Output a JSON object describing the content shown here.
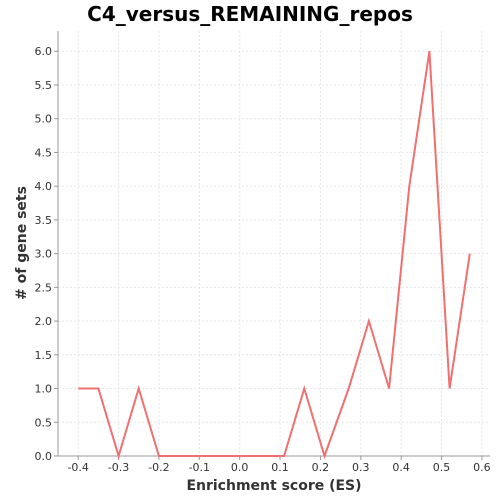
{
  "chart_data": {
    "type": "line",
    "title": "C4_versus_REMAINING_repos",
    "xlabel": "Enrichment score (ES)",
    "ylabel": "# of gene sets",
    "xlim": [
      -0.45,
      0.62
    ],
    "ylim": [
      0.0,
      6.3
    ],
    "x_ticks": [
      -0.4,
      -0.3,
      -0.2,
      -0.1,
      0.0,
      0.1,
      0.2,
      0.3,
      0.4,
      0.5,
      0.6
    ],
    "x_tick_labels": [
      "-0.4",
      "-0.3",
      "-0.2",
      "-0.1",
      "0.0",
      "0.1",
      "0.2",
      "0.3",
      "0.4",
      "0.5",
      "0.6"
    ],
    "y_ticks": [
      0.0,
      0.5,
      1.0,
      1.5,
      2.0,
      2.5,
      3.0,
      3.5,
      4.0,
      4.5,
      5.0,
      5.5,
      6.0
    ],
    "y_tick_labels": [
      "0.0",
      "0.5",
      "1.0",
      "1.5",
      "2.0",
      "2.5",
      "3.0",
      "3.5",
      "4.0",
      "4.5",
      "5.0",
      "5.5",
      "6.0"
    ],
    "grid": true,
    "series": [
      {
        "color": "#f07070",
        "x": [
          -0.4,
          -0.35,
          -0.3,
          -0.25,
          -0.2,
          -0.15,
          -0.1,
          -0.05,
          0.0,
          0.06,
          0.11,
          0.16,
          0.21,
          0.27,
          0.32,
          0.37,
          0.42,
          0.47,
          0.52,
          0.57
        ],
        "y": [
          1,
          1,
          0,
          1,
          0,
          0,
          0,
          0,
          0,
          0,
          0,
          1,
          0,
          1,
          2,
          1,
          4,
          6,
          1,
          3
        ]
      }
    ]
  }
}
